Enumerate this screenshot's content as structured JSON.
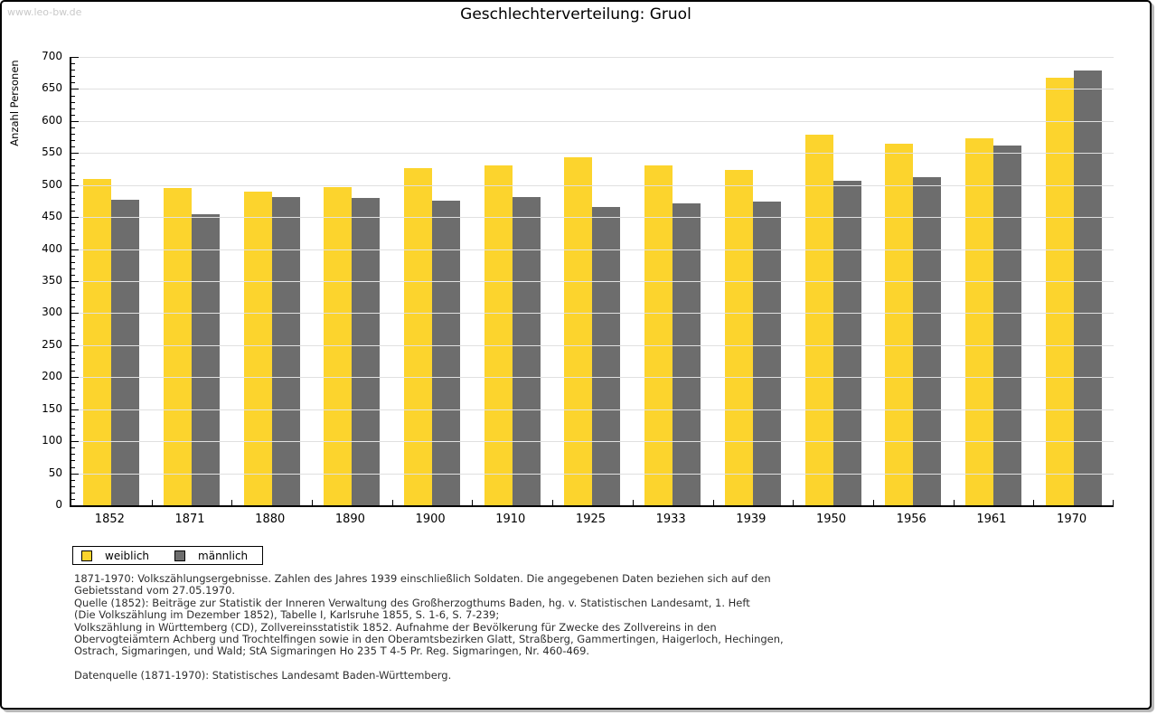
{
  "watermark": "www.leo-bw.de",
  "chart_data": {
    "type": "bar",
    "title": "Geschlechterverteilung: Gruol",
    "ylabel": "Anzahl Personen",
    "xlabel": "",
    "categories": [
      "1852",
      "1871",
      "1880",
      "1890",
      "1900",
      "1910",
      "1925",
      "1933",
      "1939",
      "1950",
      "1956",
      "1961",
      "1970"
    ],
    "series": [
      {
        "name": "weiblich",
        "color": "#FCD42D",
        "values": [
          510,
          496,
          490,
          497,
          527,
          531,
          544,
          530,
          523,
          579,
          565,
          573,
          668
        ]
      },
      {
        "name": "männlich",
        "color": "#6D6D6D",
        "values": [
          477,
          454,
          481,
          480,
          476,
          481,
          466,
          471,
          474,
          506,
          513,
          562,
          679
        ]
      }
    ],
    "ylim": [
      0,
      700
    ],
    "ytick_step": 50,
    "ytick_minor_step": 10,
    "grid": "horizontal",
    "gridline_color": "#e0e0e0",
    "legend_position": "bottom-left"
  },
  "footer": {
    "lines": [
      "1871-1970: Volkszählungsergebnisse. Zahlen des Jahres 1939 einschließlich Soldaten. Die angegebenen Daten beziehen sich auf den",
      "Gebietsstand vom 27.05.1970.",
      "Quelle (1852): Beiträge zur Statistik der Inneren Verwaltung des Großherzogthums Baden, hg. v. Statistischen Landesamt, 1. Heft",
      "(Die Volkszählung im Dezember 1852), Tabelle I, Karlsruhe 1855, S. 1-6, S. 7-239;",
      "Volkszählung in Württemberg (CD), Zollvereinsstatistik 1852. Aufnahme der Bevölkerung für Zwecke des Zollvereins in den",
      "Obervogteiämtern Achberg und Trochtelfingen sowie in den Oberamtsbezirken Glatt, Straßberg, Gammertingen, Haigerloch, Hechingen,",
      "Ostrach, Sigmaringen, und Wald; StA Sigmaringen Ho 235 T 4-5 Pr. Reg. Sigmaringen, Nr. 460-469.",
      "",
      "Datenquelle (1871-1970): Statistisches Landesamt Baden-Württemberg."
    ]
  }
}
